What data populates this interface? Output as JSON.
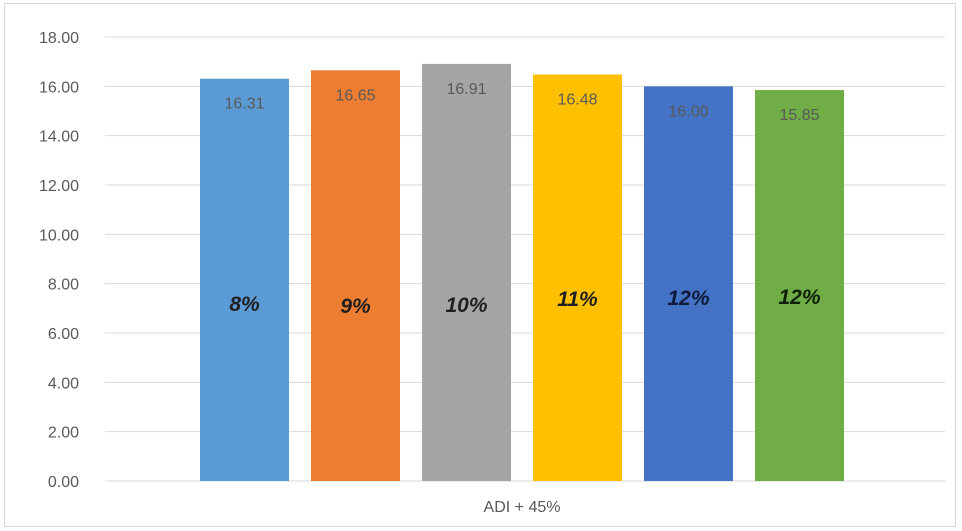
{
  "chart_data": {
    "type": "bar",
    "categories": [
      "ADI + 45%"
    ],
    "series": [
      {
        "value": 16.31,
        "value_label": "16.31",
        "annotation": "8%",
        "color": "#5b9bd5",
        "annotation_color": "#1f1f1f"
      },
      {
        "value": 16.65,
        "value_label": "16.65",
        "annotation": "9%",
        "color": "#ed7d31",
        "annotation_color": "#1f1f1f"
      },
      {
        "value": 16.91,
        "value_label": "16.91",
        "annotation": "10%",
        "color": "#a5a5a5",
        "annotation_color": "#1f1f1f"
      },
      {
        "value": 16.48,
        "value_label": "16.48",
        "annotation": "11%",
        "color": "#ffc000",
        "annotation_color": "#1f1f1f"
      },
      {
        "value": 16.0,
        "value_label": "16.00",
        "annotation": "12%",
        "color": "#4472c4",
        "annotation_color": "#0d1a3a"
      },
      {
        "value": 15.85,
        "value_label": "15.85",
        "annotation": "12%",
        "color": "#70ad47",
        "annotation_color": "#0f1f0a"
      }
    ],
    "y_ticks": [
      "0.00",
      "2.00",
      "4.00",
      "6.00",
      "8.00",
      "10.00",
      "12.00",
      "14.00",
      "16.00",
      "18.00"
    ],
    "ylim": [
      0,
      18
    ],
    "grid": true,
    "gridline_color": "#d9d9d9",
    "title": "",
    "xlabel": "",
    "ylabel": ""
  }
}
